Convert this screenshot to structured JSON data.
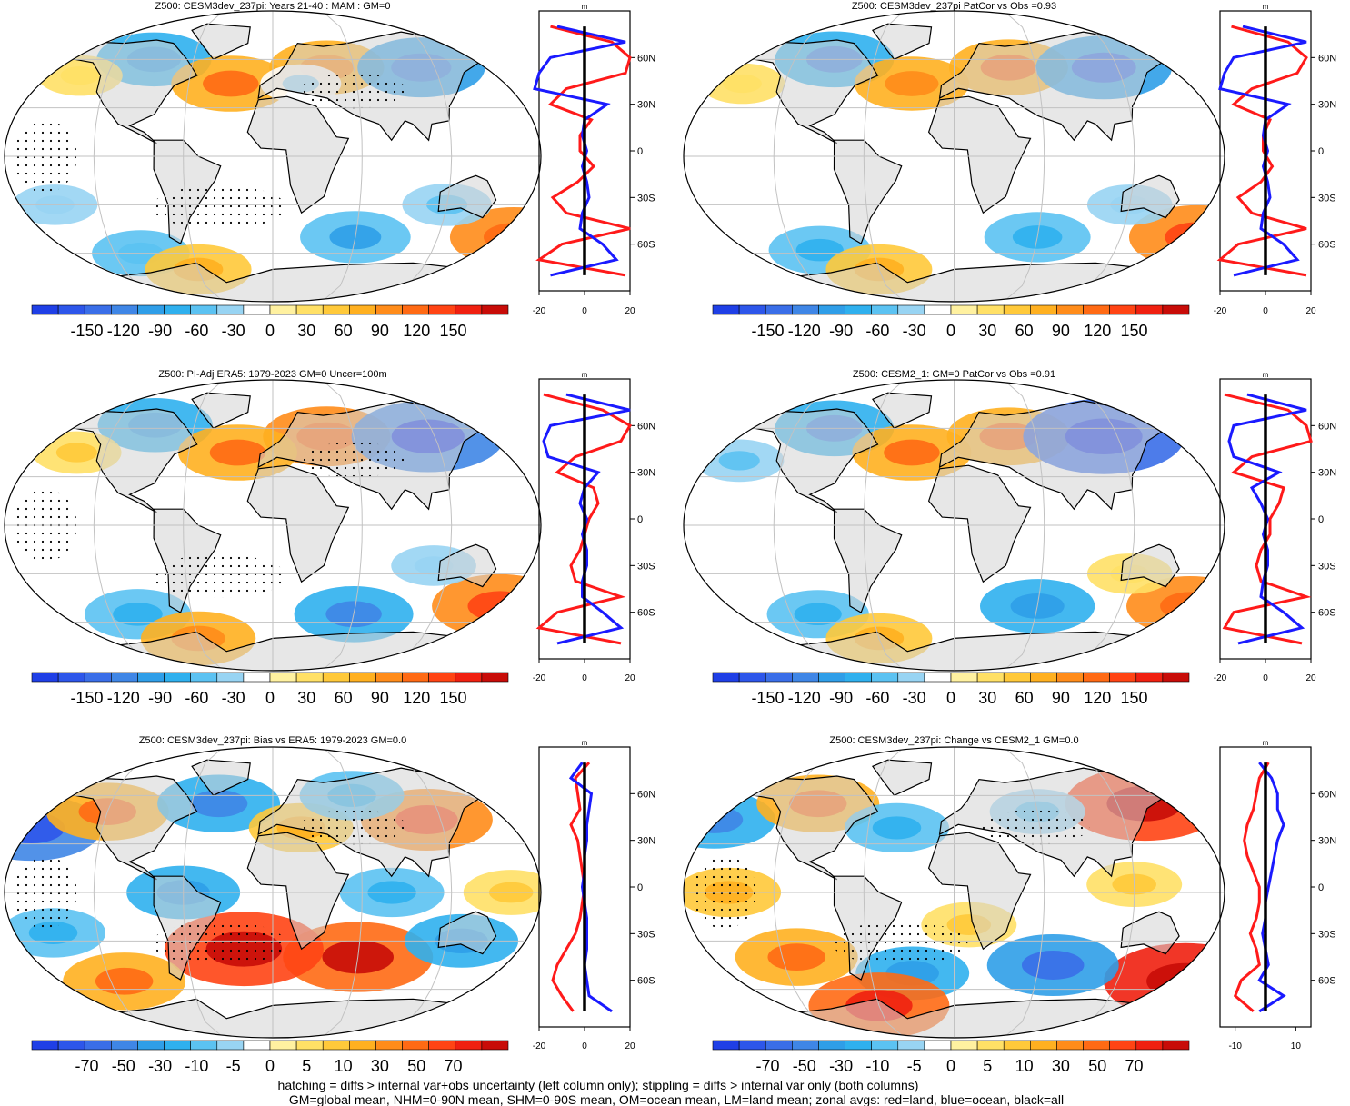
{
  "colors": {
    "land": "#d4d4d4",
    "grid": "#c2c2c2",
    "zonal_land": "#ff1a1a",
    "zonal_ocean": "#1a1aff",
    "zonal_all": "#000000",
    "palette": [
      "#1f3fe6",
      "#2d56ea",
      "#3a6ee8",
      "#3f86e6",
      "#2f9ee8",
      "#2fb0ee",
      "#5bc2f2",
      "#98d4f3",
      "#ffffff",
      "#fff1a0",
      "#ffe066",
      "#ffc93a",
      "#ffb020",
      "#ff8c1a",
      "#ff6a14",
      "#ff4414",
      "#f02010",
      "#c80c08"
    ]
  },
  "zonal_axis": {
    "unit": "m",
    "lat_labels": [
      "60N",
      "30N",
      "0",
      "30S",
      "60S"
    ]
  },
  "footer": {
    "line1": "hatching = diffs > internal var+obs uncertainty (left column only); stippling = diffs > internal var only (both columns)",
    "line2": "GM=global mean, NHM=0-90N mean, SHM=0-90S mean, OM=ocean mean, LM=land mean; zonal avgs: red=land, blue=ocean, black=all"
  },
  "chart_data": [
    {
      "type": "heatmap",
      "title": "Z500: CESM3dev_237pi: Years 21-40 : MAM : GM=0",
      "colorbar_labels": [
        "-150",
        "-120",
        "-90",
        "-60",
        "-30",
        "0",
        "30",
        "60",
        "90",
        "120",
        "150"
      ],
      "zonal": {
        "xlim": [
          -20,
          20
        ],
        "xticks": [
          "-20",
          "0",
          "20"
        ],
        "lat": [
          80,
          70,
          60,
          50,
          40,
          30,
          20,
          10,
          0,
          -10,
          -20,
          -30,
          -40,
          -50,
          -60,
          -70,
          -80
        ],
        "land": [
          -15,
          12,
          20,
          18,
          -8,
          -15,
          3,
          -2,
          -2,
          4,
          -3,
          -14,
          -8,
          20,
          -10,
          -20,
          18
        ],
        "ocean": [
          -12,
          18,
          -15,
          -20,
          -22,
          10,
          0,
          -1,
          1,
          -1,
          1,
          2,
          -1,
          -2,
          8,
          14,
          -15
        ],
        "all": [
          0,
          0,
          0,
          0,
          0,
          0,
          0,
          0,
          0,
          0,
          0,
          0,
          0,
          0,
          0,
          0,
          0
        ]
      },
      "blobs": [
        {
          "lon": 40,
          "lat": 55,
          "value": 55
        },
        {
          "lon": 110,
          "lat": 55,
          "value": -70
        },
        {
          "lon": -90,
          "lat": 60,
          "value": -55
        },
        {
          "lon": -30,
          "lat": 45,
          "value": 60
        },
        {
          "lon": -140,
          "lat": 50,
          "value": 20
        },
        {
          "lon": 20,
          "lat": 45,
          "value": -15
        },
        {
          "lon": 175,
          "lat": -50,
          "value": 70
        },
        {
          "lon": 60,
          "lat": -50,
          "value": -50
        },
        {
          "lon": -100,
          "lat": -60,
          "value": -35
        },
        {
          "lon": -60,
          "lat": -70,
          "value": 45
        },
        {
          "lon": 120,
          "lat": -30,
          "value": -25
        },
        {
          "lon": -150,
          "lat": -30,
          "value": -20
        }
      ]
    },
    {
      "type": "heatmap",
      "title": "Z500: CESM3dev_237pi PatCor vs Obs =0.93",
      "colorbar_labels": [
        "-150",
        "-120",
        "-90",
        "-60",
        "-30",
        "0",
        "30",
        "60",
        "90",
        "120",
        "150"
      ],
      "zonal": {
        "xlim": [
          -20,
          20
        ],
        "xticks": [
          "-20",
          "0",
          "20"
        ],
        "lat": [
          80,
          70,
          60,
          50,
          40,
          30,
          20,
          10,
          0,
          -10,
          -20,
          -30,
          -40,
          -50,
          -60,
          -70,
          -80
        ],
        "land": [
          -15,
          10,
          18,
          14,
          -6,
          -14,
          2,
          -1,
          -1,
          3,
          -2,
          -12,
          -6,
          18,
          -12,
          -20,
          18
        ],
        "ocean": [
          -10,
          18,
          -14,
          -18,
          -20,
          10,
          0,
          -1,
          1,
          -1,
          1,
          2,
          -1,
          -2,
          8,
          14,
          -14
        ],
        "all": [
          0,
          0,
          0,
          0,
          0,
          0,
          0,
          0,
          0,
          0,
          0,
          0,
          0,
          0,
          0,
          0,
          0
        ]
      },
      "blobs": [
        {
          "lon": 40,
          "lat": 55,
          "value": 60
        },
        {
          "lon": 110,
          "lat": 55,
          "value": -80
        },
        {
          "lon": -90,
          "lat": 60,
          "value": -60
        },
        {
          "lon": -30,
          "lat": 45,
          "value": 55
        },
        {
          "lon": -150,
          "lat": 45,
          "value": 20
        },
        {
          "lon": 175,
          "lat": -50,
          "value": 80
        },
        {
          "lon": 60,
          "lat": -50,
          "value": -45
        },
        {
          "lon": -100,
          "lat": -58,
          "value": -40
        },
        {
          "lon": -60,
          "lat": -70,
          "value": 45
        },
        {
          "lon": 120,
          "lat": -30,
          "value": -20
        }
      ]
    },
    {
      "type": "heatmap",
      "title": "Z500: PI-Adj ERA5: 1979-2023 GM=0 Uncer=100m",
      "colorbar_labels": [
        "-150",
        "-120",
        "-90",
        "-60",
        "-30",
        "0",
        "30",
        "60",
        "90",
        "120",
        "150"
      ],
      "zonal": {
        "xlim": [
          -20,
          20
        ],
        "xticks": [
          "-20",
          "0",
          "20"
        ],
        "lat": [
          80,
          70,
          60,
          50,
          40,
          30,
          20,
          10,
          0,
          -10,
          -20,
          -30,
          -40,
          -50,
          -60,
          -70,
          -80
        ],
        "land": [
          -18,
          8,
          20,
          16,
          -4,
          -12,
          4,
          6,
          2,
          0,
          -2,
          -6,
          -4,
          16,
          -12,
          -20,
          16
        ],
        "ocean": [
          -8,
          20,
          -15,
          -18,
          -16,
          6,
          0,
          -2,
          1,
          -1,
          1,
          1,
          -1,
          -1,
          8,
          16,
          -12
        ],
        "all": [
          0,
          0,
          0,
          0,
          0,
          0,
          0,
          0,
          0,
          0,
          0,
          0,
          0,
          0,
          0,
          0,
          0
        ]
      },
      "blobs": [
        {
          "lon": 40,
          "lat": 55,
          "value": 70
        },
        {
          "lon": 115,
          "lat": 55,
          "value": -100
        },
        {
          "lon": -90,
          "lat": 62,
          "value": -55
        },
        {
          "lon": -25,
          "lat": 45,
          "value": 60
        },
        {
          "lon": -140,
          "lat": 45,
          "value": 25
        },
        {
          "lon": 165,
          "lat": -50,
          "value": 80
        },
        {
          "lon": 60,
          "lat": -55,
          "value": -60
        },
        {
          "lon": -100,
          "lat": -55,
          "value": -45
        },
        {
          "lon": -60,
          "lat": -70,
          "value": 55
        },
        {
          "lon": 110,
          "lat": -25,
          "value": -20
        }
      ]
    },
    {
      "type": "heatmap",
      "title": "Z500: CESM2_1: GM=0 PatCor vs Obs =0.91",
      "colorbar_labels": [
        "-150",
        "-120",
        "-90",
        "-60",
        "-30",
        "0",
        "30",
        "60",
        "90",
        "120",
        "150"
      ],
      "zonal": {
        "xlim": [
          -20,
          20
        ],
        "xticks": [
          "-20",
          "0",
          "20"
        ],
        "lat": [
          80,
          70,
          60,
          50,
          40,
          30,
          20,
          10,
          0,
          -10,
          -20,
          -30,
          -40,
          -50,
          -60,
          -70,
          -80
        ],
        "land": [
          -18,
          10,
          18,
          20,
          -6,
          -14,
          8,
          6,
          2,
          2,
          -2,
          -4,
          -2,
          18,
          -14,
          -18,
          16
        ],
        "ocean": [
          -8,
          18,
          -14,
          -16,
          -14,
          6,
          -6,
          -2,
          1,
          -1,
          1,
          1,
          -1,
          -2,
          8,
          16,
          -12
        ],
        "all": [
          0,
          0,
          0,
          0,
          0,
          0,
          0,
          0,
          0,
          0,
          0,
          0,
          0,
          0,
          0,
          0,
          0
        ]
      },
      "blobs": [
        {
          "lon": 40,
          "lat": 55,
          "value": 65
        },
        {
          "lon": 110,
          "lat": 55,
          "value": -110
        },
        {
          "lon": -90,
          "lat": 60,
          "value": -60
        },
        {
          "lon": -30,
          "lat": 45,
          "value": 60
        },
        {
          "lon": -150,
          "lat": 40,
          "value": -25
        },
        {
          "lon": 170,
          "lat": -50,
          "value": 70
        },
        {
          "lon": 60,
          "lat": -50,
          "value": -55
        },
        {
          "lon": -100,
          "lat": -55,
          "value": -40
        },
        {
          "lon": -60,
          "lat": -70,
          "value": 45
        },
        {
          "lon": 120,
          "lat": -30,
          "value": 20
        }
      ]
    },
    {
      "type": "heatmap",
      "title": "Z500: CESM3dev_237pi: Bias vs ERA5: 1979-2023 GM=0.0",
      "colorbar_labels": [
        "-70",
        "-50",
        "-30",
        "-10",
        "-5",
        "0",
        "5",
        "10",
        "30",
        "50",
        "70"
      ],
      "zonal": {
        "xlim": [
          -20,
          20
        ],
        "xticks": [
          "-20",
          "0",
          "20"
        ],
        "lat": [
          80,
          70,
          60,
          50,
          40,
          30,
          20,
          10,
          0,
          -10,
          -20,
          -30,
          -40,
          -50,
          -60,
          -70,
          -80
        ],
        "land": [
          2,
          -4,
          -3,
          -2,
          -6,
          -3,
          -2,
          -1,
          0,
          -1,
          -2,
          -4,
          -8,
          -12,
          -14,
          -10,
          -5
        ],
        "ocean": [
          -1,
          -6,
          3,
          2,
          1,
          1,
          0,
          0,
          -1,
          0,
          1,
          1,
          1,
          0,
          1,
          2,
          12
        ],
        "all": [
          0,
          0,
          0,
          0,
          0,
          0,
          0,
          0,
          0,
          0,
          0,
          0,
          0,
          0,
          0,
          0,
          0
        ]
      },
      "blobs": [
        {
          "lon": 110,
          "lat": 45,
          "value": 35
        },
        {
          "lon": -170,
          "lat": 40,
          "value": -40
        },
        {
          "lon": -120,
          "lat": 50,
          "value": 30
        },
        {
          "lon": -40,
          "lat": 55,
          "value": -30
        },
        {
          "lon": 20,
          "lat": 40,
          "value": 20
        },
        {
          "lon": 60,
          "lat": 60,
          "value": -20
        },
        {
          "lon": 60,
          "lat": -40,
          "value": 45
        },
        {
          "lon": 130,
          "lat": -30,
          "value": -25
        },
        {
          "lon": -150,
          "lat": -25,
          "value": -20
        },
        {
          "lon": -20,
          "lat": -35,
          "value": 50
        },
        {
          "lon": -60,
          "lat": 0,
          "value": -25
        },
        {
          "lon": 160,
          "lat": 0,
          "value": 15
        },
        {
          "lon": 80,
          "lat": 0,
          "value": -20
        },
        {
          "lon": -110,
          "lat": -55,
          "value": 30
        }
      ]
    },
    {
      "type": "heatmap",
      "title": "Z500: CESM3dev_237pi: Change vs CESM2_1 GM=0.0",
      "colorbar_labels": [
        "-70",
        "-50",
        "-30",
        "-10",
        "-5",
        "0",
        "5",
        "10",
        "30",
        "50",
        "70"
      ],
      "zonal": {
        "xlim": [
          -15,
          15
        ],
        "xticks": [
          "-10",
          "10"
        ],
        "lat": [
          80,
          70,
          60,
          50,
          40,
          30,
          20,
          10,
          0,
          -10,
          -20,
          -30,
          -40,
          -50,
          -60,
          -70,
          -80
        ],
        "land": [
          1,
          -2,
          -3,
          -4,
          -6,
          -7,
          -6,
          -4,
          -2,
          -2,
          -3,
          -5,
          -3,
          -2,
          -8,
          -10,
          -4
        ],
        "ocean": [
          -2,
          2,
          4,
          4,
          6,
          4,
          3,
          2,
          1,
          0,
          0,
          -1,
          0,
          1,
          -2,
          6,
          -2
        ],
        "all": [
          0,
          0,
          0,
          0,
          0,
          0,
          0,
          0,
          0,
          0,
          0,
          0,
          0,
          0,
          0,
          0,
          0
        ]
      },
      "blobs": [
        {
          "lon": 140,
          "lat": 55,
          "value": 50
        },
        {
          "lon": -170,
          "lat": 45,
          "value": -30
        },
        {
          "lon": -100,
          "lat": 55,
          "value": 30
        },
        {
          "lon": -40,
          "lat": 40,
          "value": -20
        },
        {
          "lon": 60,
          "lat": 50,
          "value": -15
        },
        {
          "lon": 170,
          "lat": -55,
          "value": 60
        },
        {
          "lon": 70,
          "lat": -45,
          "value": -35
        },
        {
          "lon": -110,
          "lat": -40,
          "value": 30
        },
        {
          "lon": -30,
          "lat": -50,
          "value": -25
        },
        {
          "lon": -60,
          "lat": -70,
          "value": 40
        },
        {
          "lon": 10,
          "lat": -20,
          "value": 15
        },
        {
          "lon": 120,
          "lat": 5,
          "value": 15
        },
        {
          "lon": -150,
          "lat": 0,
          "value": 20
        }
      ]
    }
  ]
}
